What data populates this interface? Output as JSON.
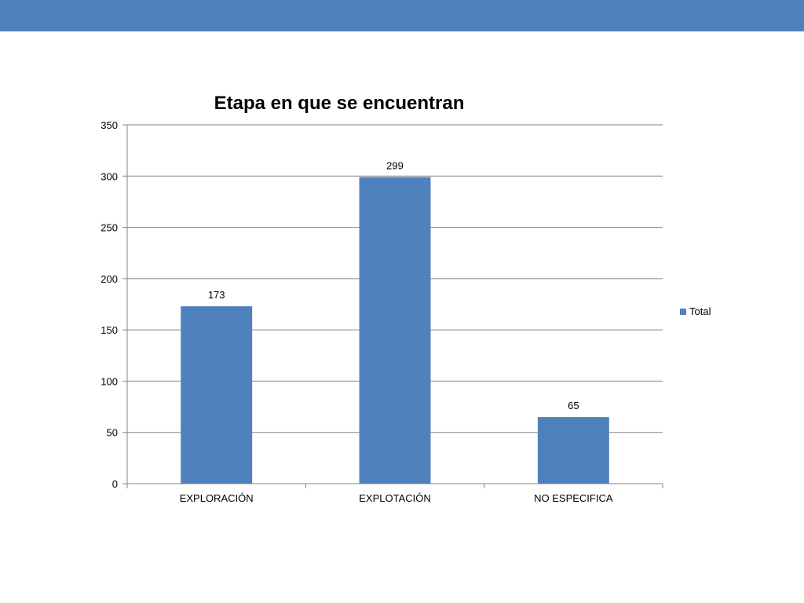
{
  "colors": {
    "header_bar": "#4f81bd",
    "bar": "#4f81bd",
    "grid": "#868686"
  },
  "chart_data": {
    "type": "bar",
    "title": "Etapa en que se encuentran",
    "xlabel": "",
    "ylabel": "",
    "categories": [
      "EXPLORACIÓN",
      "EXPLOTACIÓN",
      "NO ESPECIFICA"
    ],
    "series": [
      {
        "name": "Total",
        "values": [
          173,
          299,
          65
        ],
        "color": "#4f81bd"
      }
    ],
    "ylim": [
      0,
      350
    ],
    "yticks": [
      0,
      50,
      100,
      150,
      200,
      250,
      300,
      350
    ],
    "grid": true,
    "data_labels": true,
    "legend": "right"
  }
}
